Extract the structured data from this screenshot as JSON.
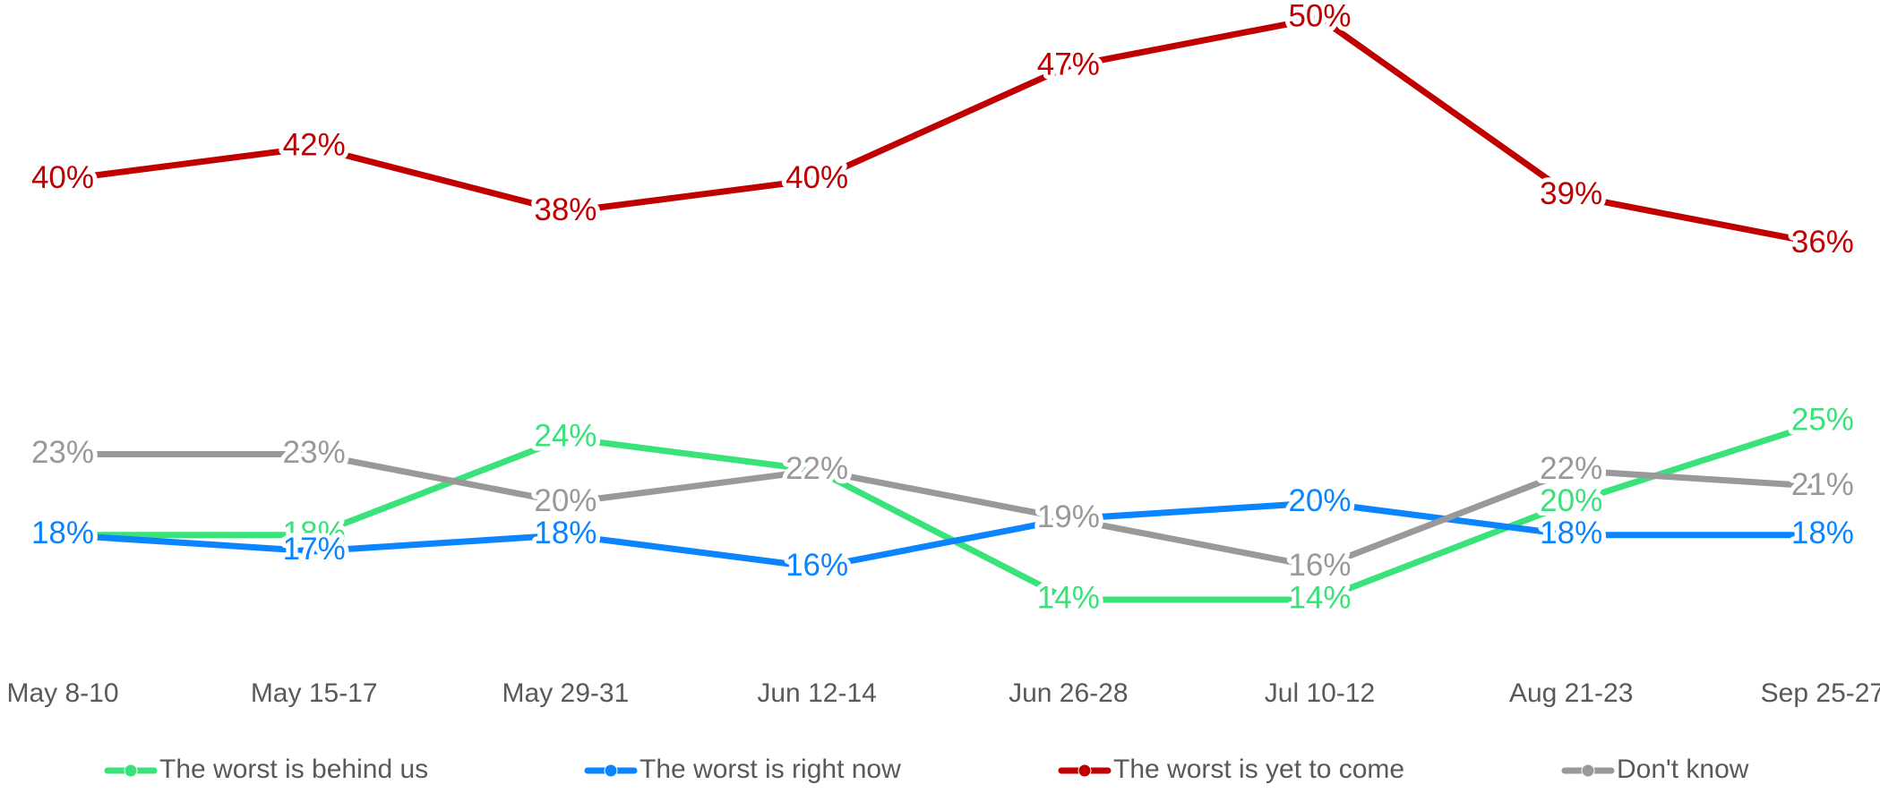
{
  "chart_data": {
    "type": "line",
    "categories": [
      "May 8-10",
      "May 15-17",
      "May 29-31",
      "Jun 12-14",
      "Jun 26-28",
      "Jul 10-12",
      "Aug 21-23",
      "Sep 25-27"
    ],
    "series": [
      {
        "name": "The worst is behind us",
        "color": "#3ae27a",
        "values": [
          18,
          18,
          24,
          22,
          14,
          14,
          20,
          25
        ],
        "value_labels": [
          "18%",
          "18%",
          "24%",
          "22%",
          "14%",
          "14%",
          "20%",
          "25%"
        ]
      },
      {
        "name": "The worst is right now",
        "color": "#0a84ff",
        "values": [
          18,
          17,
          18,
          16,
          19,
          20,
          18,
          18
        ],
        "value_labels": [
          "18%",
          "17%",
          "18%",
          "16%",
          "19%",
          "20%",
          "18%",
          "18%"
        ]
      },
      {
        "name": "The worst is yet to come",
        "color": "#c00000",
        "values": [
          40,
          42,
          38,
          40,
          47,
          50,
          39,
          36
        ],
        "value_labels": [
          "40%",
          "42%",
          "38%",
          "40%",
          "47%",
          "50%",
          "39%",
          "36%"
        ]
      },
      {
        "name": "Don't know",
        "color": "#999999",
        "values": [
          23,
          23,
          20,
          22,
          19,
          16,
          22,
          21
        ],
        "value_labels": [
          "23%",
          "23%",
          "20%",
          "22%",
          "19%",
          "16%",
          "22%",
          "21%"
        ]
      }
    ],
    "legend": "bottom"
  }
}
